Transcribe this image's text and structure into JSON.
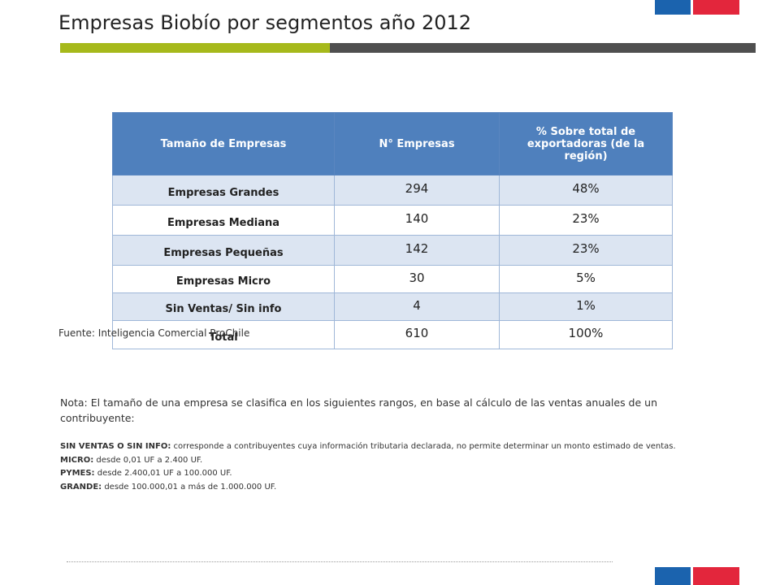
{
  "title": "Empresas Biobío por segmentos año 2012",
  "colors": {
    "flag_blue": "#1b63ae",
    "flag_red": "#e3263c",
    "accent_green": "#a6b91b",
    "accent_gray": "#4f4f4f",
    "header_blue": "#4f80bd",
    "row_light": "#dce5f2",
    "row_white": "#ffffff"
  },
  "table": {
    "headers": [
      "Tamaño de Empresas",
      "N° Empresas",
      "% Sobre total de exportadoras (de la región)"
    ],
    "rows": [
      {
        "name": "Empresas Grandes",
        "count": "294",
        "pct": "48%"
      },
      {
        "name": "Empresas Mediana",
        "count": "140",
        "pct": "23%"
      },
      {
        "name": "Empresas Pequeñas",
        "count": "142",
        "pct": "23%"
      },
      {
        "name": "Empresas Micro",
        "count": "30",
        "pct": "5%"
      },
      {
        "name": "Sin Ventas/ Sin info",
        "count": "4",
        "pct": "1%"
      },
      {
        "name": "Total",
        "count": "610",
        "pct": "100%"
      }
    ]
  },
  "source": "Fuente: Inteligencia Comercial ProChile",
  "note": "Nota: El tamaño de una empresa se clasifica en los siguientes rangos, en base al cálculo de las ventas anuales de un contribuyente:",
  "definitions": [
    {
      "term": "SIN VENTAS O SIN INFO:",
      "text": " corresponde a contribuyentes cuya información tributaria declarada, no permite determinar un monto estimado de ventas."
    },
    {
      "term": "MICRO:",
      "text": " desde 0,01 UF a 2.400 UF."
    },
    {
      "term": "PYMES:",
      "text": " desde 2.400,01 UF a 100.000 UF."
    },
    {
      "term": "GRANDE:",
      "text": " desde 100.000,01 a más de 1.000.000 UF."
    }
  ]
}
